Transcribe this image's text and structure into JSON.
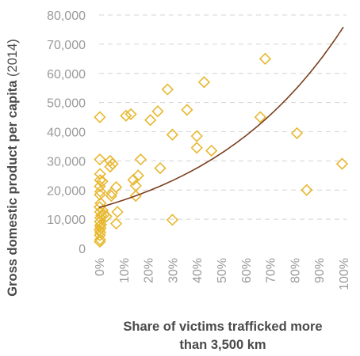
{
  "chart_data": {
    "type": "scatter",
    "title": "",
    "xlabel": "Share of victims trafficked more than 3,500 km",
    "xlabel_lines": [
      "Share of victims trafficked more",
      "than 3,500 km"
    ],
    "ylabel": "Gross domestic product per capita (2014)",
    "ylabel_main": "Gross domestic product per capita",
    "ylabel_suffix": " (2014)",
    "xlim": [
      0,
      100
    ],
    "ylim": [
      0,
      80000
    ],
    "x_ticks": [
      0,
      10,
      20,
      30,
      40,
      50,
      60,
      70,
      80,
      90,
      100
    ],
    "x_tick_labels": [
      "0%",
      "10%",
      "20%",
      "30%",
      "40%",
      "50%",
      "60%",
      "70%",
      "80%",
      "90%",
      "100%"
    ],
    "y_ticks": [
      0,
      10000,
      20000,
      30000,
      40000,
      50000,
      60000,
      70000,
      80000
    ],
    "y_tick_labels": [
      "0",
      "10,000",
      "20,000",
      "30,000",
      "40,000",
      "50,000",
      "60,000",
      "70,000",
      "80,000"
    ],
    "grid": {
      "horizontal": true,
      "vertical": false,
      "style": "dashed"
    },
    "marker": "diamond",
    "colors": {
      "marker": "#e8b830",
      "trend": "#7a3f1e",
      "grid": "#d4d4d4",
      "tick": "#9a9a9a",
      "title": "#4a4a4a"
    },
    "points": [
      {
        "x": 0.3,
        "y": 2300
      },
      {
        "x": 0.4,
        "y": 3000
      },
      {
        "x": 0.3,
        "y": 4500
      },
      {
        "x": 0.5,
        "y": 5500
      },
      {
        "x": 0.2,
        "y": 6300
      },
      {
        "x": 0.6,
        "y": 7000
      },
      {
        "x": 0.4,
        "y": 7800
      },
      {
        "x": 0.8,
        "y": 8200
      },
      {
        "x": 0.3,
        "y": 9200
      },
      {
        "x": 0.5,
        "y": 10500
      },
      {
        "x": 0.9,
        "y": 11300
      },
      {
        "x": 0.4,
        "y": 12500
      },
      {
        "x": 0.2,
        "y": 14200
      },
      {
        "x": 0.6,
        "y": 15500
      },
      {
        "x": 0.3,
        "y": 18400
      },
      {
        "x": 0.5,
        "y": 19500
      },
      {
        "x": 0.3,
        "y": 21300
      },
      {
        "x": 0.4,
        "y": 23400
      },
      {
        "x": 1.3,
        "y": 23000
      },
      {
        "x": 0.4,
        "y": 25500
      },
      {
        "x": 0.3,
        "y": 30500
      },
      {
        "x": 0.3,
        "y": 45000
      },
      {
        "x": 2.0,
        "y": 11500
      },
      {
        "x": 3.0,
        "y": 11000
      },
      {
        "x": 1.5,
        "y": 13000
      },
      {
        "x": 5.0,
        "y": 18000
      },
      {
        "x": 5.2,
        "y": 19000
      },
      {
        "x": 7.0,
        "y": 21000
      },
      {
        "x": 4.5,
        "y": 28000
      },
      {
        "x": 5.5,
        "y": 29000
      },
      {
        "x": 4.5,
        "y": 30000
      },
      {
        "x": 7.5,
        "y": 12500
      },
      {
        "x": 7.0,
        "y": 8500
      },
      {
        "x": 11.0,
        "y": 45500
      },
      {
        "x": 13.0,
        "y": 46000
      },
      {
        "x": 15.0,
        "y": 21500
      },
      {
        "x": 14.0,
        "y": 23500
      },
      {
        "x": 15.0,
        "y": 18000
      },
      {
        "x": 16.0,
        "y": 25000
      },
      {
        "x": 17.0,
        "y": 30500
      },
      {
        "x": 21.0,
        "y": 44000
      },
      {
        "x": 24.0,
        "y": 47000
      },
      {
        "x": 25.0,
        "y": 27500
      },
      {
        "x": 28.0,
        "y": 54500
      },
      {
        "x": 30.0,
        "y": 39000
      },
      {
        "x": 30.0,
        "y": 9800
      },
      {
        "x": 36.0,
        "y": 47500
      },
      {
        "x": 40.0,
        "y": 38500
      },
      {
        "x": 40.0,
        "y": 34500
      },
      {
        "x": 43.0,
        "y": 57000
      },
      {
        "x": 46.0,
        "y": 33500
      },
      {
        "x": 66.0,
        "y": 45000
      },
      {
        "x": 68.0,
        "y": 65000
      },
      {
        "x": 81.0,
        "y": 39500
      },
      {
        "x": 85.0,
        "y": 20000
      },
      {
        "x": 99.5,
        "y": 29000
      }
    ],
    "trendline": {
      "type": "exponential",
      "a": 14000,
      "b": 0.0169
    }
  }
}
